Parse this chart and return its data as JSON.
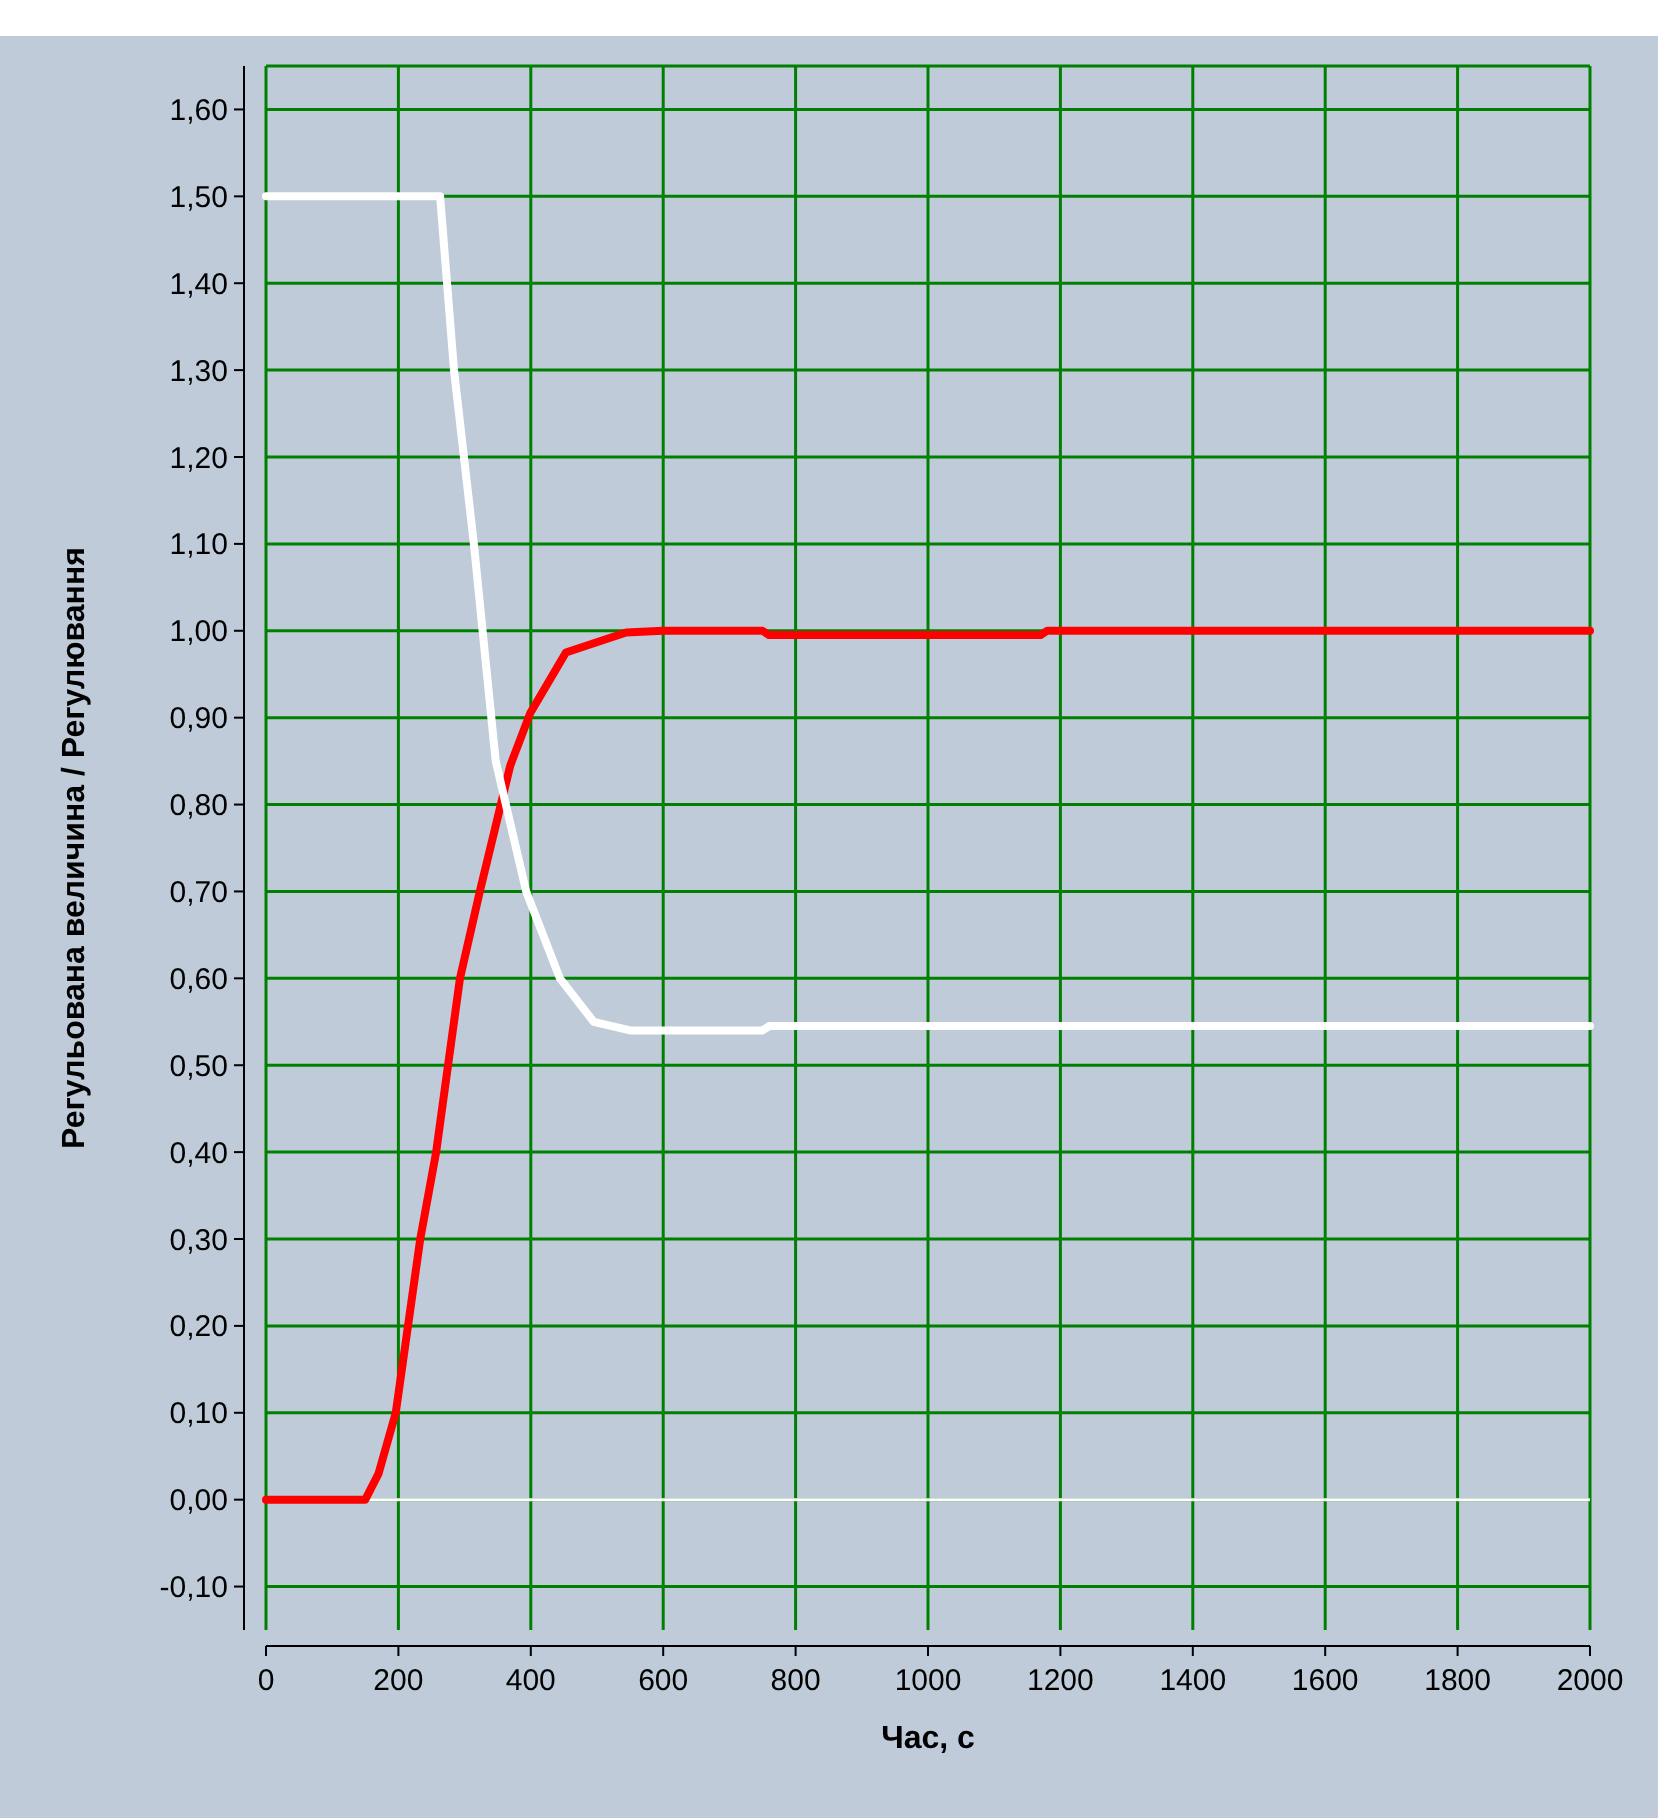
{
  "chart_data": {
    "type": "line",
    "xlabel": "Час, с",
    "ylabel": "Регульована величина / Регулювання",
    "xlim": [
      0,
      2000
    ],
    "xticks": [
      0,
      200,
      400,
      600,
      800,
      1000,
      1200,
      1400,
      1600,
      1800,
      2000
    ],
    "ylim": [
      -0.15,
      1.65
    ],
    "yticks": [
      {
        "value": -0.1,
        "label": "-0,10"
      },
      {
        "value": 0,
        "label": "0,00"
      },
      {
        "value": 0.1,
        "label": "0,10"
      },
      {
        "value": 0.2,
        "label": "0,20"
      },
      {
        "value": 0.3,
        "label": "0,30"
      },
      {
        "value": 0.4,
        "label": "0,40"
      },
      {
        "value": 0.5,
        "label": "0,50"
      },
      {
        "value": 0.6,
        "label": "0,60"
      },
      {
        "value": 0.7,
        "label": "0,70"
      },
      {
        "value": 0.8,
        "label": "0,80"
      },
      {
        "value": 0.9,
        "label": "0,90"
      },
      {
        "value": 1.0,
        "label": "1,00"
      },
      {
        "value": 1.1,
        "label": "1,10"
      },
      {
        "value": 1.2,
        "label": "1,20"
      },
      {
        "value": 1.3,
        "label": "1,30"
      },
      {
        "value": 1.4,
        "label": "1,40"
      },
      {
        "value": 1.5,
        "label": "1,50"
      },
      {
        "value": 1.6,
        "label": "1,60"
      }
    ],
    "grid": true,
    "marker": "none",
    "line_style": "solid",
    "ref_lines": [
      {
        "axis": "y",
        "value": 0,
        "color": "#ffffff"
      }
    ],
    "series": [
      {
        "color": "#ff0000",
        "x": [
          0,
          150,
          170,
          196,
          233,
          257,
          293,
          323,
          369,
          399,
          453,
          544,
          600,
          750,
          760,
          1170,
          1180,
          2000
        ],
        "values": [
          0,
          0,
          0.03,
          0.1,
          0.3,
          0.4,
          0.6,
          0.7,
          0.845,
          0.905,
          0.975,
          0.998,
          1.0,
          1.0,
          0.995,
          0.995,
          1.0,
          1.0
        ]
      },
      {
        "color": "#ffffff",
        "x": [
          0,
          263,
          284,
          314,
          347,
          393,
          444,
          495,
          550,
          750,
          760,
          2000
        ],
        "values": [
          1.5,
          1.5,
          1.3,
          1.1,
          0.85,
          0.7,
          0.6,
          0.55,
          0.54,
          0.54,
          0.545,
          0.545
        ]
      }
    ]
  }
}
